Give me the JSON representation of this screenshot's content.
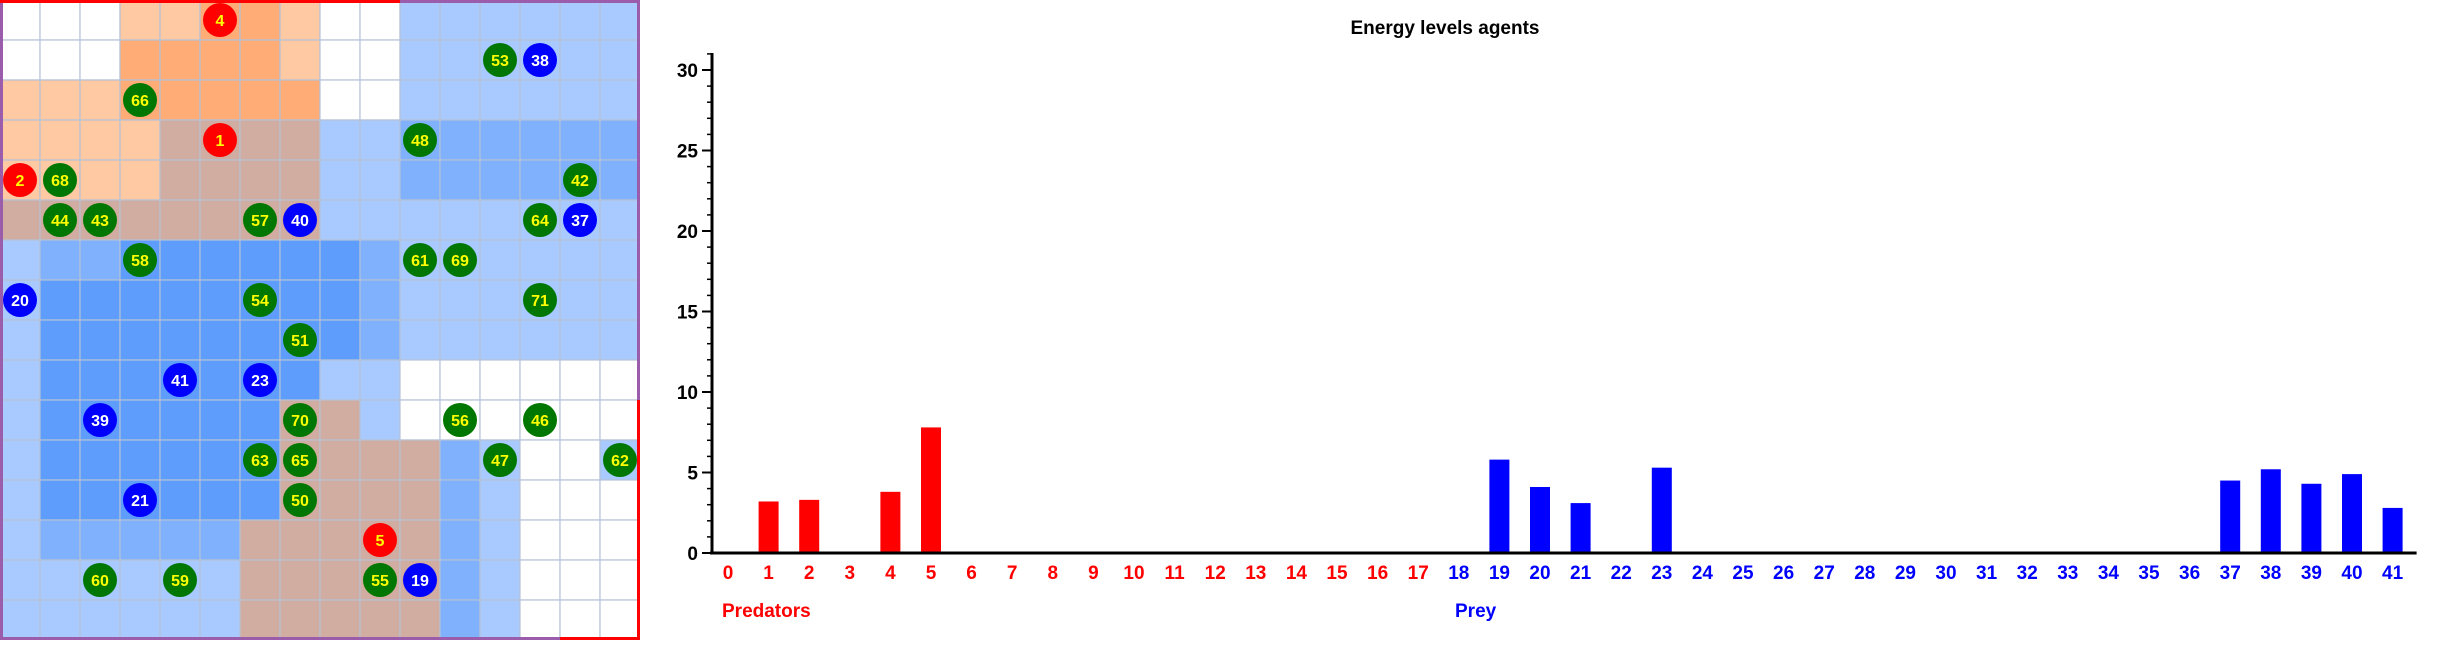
{
  "grid": {
    "rows": 16,
    "cols": 16,
    "colors": {
      "empty": "#ffffff",
      "predator_light": "#ffc9a3",
      "predator_mid": "#ffac76",
      "mixed": "#d1aca0",
      "prey_light": "#a9caff",
      "prey_mid": "#7fb1fc",
      "prey_dark": "#5e9dfb",
      "grid_line": "#b5c2d6",
      "predator_agent": "#ff0000",
      "prey_agent": "#0000ff",
      "food_agent": "#007700",
      "label_yellow": "#ffff00",
      "label_white": "#ffffff",
      "border_red": "#ff0000",
      "border_purple": "#9b5cab"
    },
    "cells": [
      "EEELLMMLEEBBBBBB",
      "EEEMMMMLEEBBBBBB",
      "LLLMMMMMEEBBBBBB",
      "LLLLXXXXBBNNNNNN",
      "LLLLXXXXBBNNNNNN",
      "XXXXXXXXBBBBBBBB",
      "BNNDDDDDDNBBBBBB",
      "BDDDDDDDDNBBBBBB",
      "BDDDDDDDDNBBBBBB",
      "BDDDDDDDBBEEEEEE",
      "BDDDDDDXXBEEEEEE",
      "BDDDDDDXXXXNBEEB",
      "BDDDDDDXXXXNBEEE",
      "BNNNNNXXXXXNBEEE",
      "BBBBBBXXXXXNBEEE",
      "BBBBBBXXXXXNBEEE"
    ],
    "agents": [
      {
        "id": "4",
        "kind": "predator",
        "row": 0,
        "col": 5
      },
      {
        "id": "53",
        "kind": "food",
        "row": 1,
        "col": 12
      },
      {
        "id": "38",
        "kind": "prey",
        "row": 1,
        "col": 13
      },
      {
        "id": "66",
        "kind": "food",
        "row": 2,
        "col": 3
      },
      {
        "id": "1",
        "kind": "predator",
        "row": 3,
        "col": 5
      },
      {
        "id": "48",
        "kind": "food",
        "row": 3,
        "col": 10
      },
      {
        "id": "2",
        "kind": "predator",
        "row": 4,
        "col": 0
      },
      {
        "id": "68",
        "kind": "food",
        "row": 4,
        "col": 1
      },
      {
        "id": "42",
        "kind": "food",
        "row": 4,
        "col": 14
      },
      {
        "id": "44",
        "kind": "food",
        "row": 5,
        "col": 1
      },
      {
        "id": "43",
        "kind": "food",
        "row": 5,
        "col": 2
      },
      {
        "id": "57",
        "kind": "food",
        "row": 5,
        "col": 6
      },
      {
        "id": "40",
        "kind": "prey",
        "row": 5,
        "col": 7
      },
      {
        "id": "64",
        "kind": "food",
        "row": 5,
        "col": 13
      },
      {
        "id": "37",
        "kind": "prey",
        "row": 5,
        "col": 14
      },
      {
        "id": "58",
        "kind": "food",
        "row": 6,
        "col": 3
      },
      {
        "id": "61",
        "kind": "food",
        "row": 6,
        "col": 10
      },
      {
        "id": "69",
        "kind": "food",
        "row": 6,
        "col": 11
      },
      {
        "id": "20",
        "kind": "prey",
        "row": 7,
        "col": 0
      },
      {
        "id": "54",
        "kind": "food",
        "row": 7,
        "col": 6
      },
      {
        "id": "71",
        "kind": "food",
        "row": 7,
        "col": 13
      },
      {
        "id": "51",
        "kind": "food",
        "row": 8,
        "col": 7
      },
      {
        "id": "41",
        "kind": "prey",
        "row": 9,
        "col": 4
      },
      {
        "id": "23",
        "kind": "prey",
        "row": 9,
        "col": 6
      },
      {
        "id": "39",
        "kind": "prey",
        "row": 10,
        "col": 2
      },
      {
        "id": "70",
        "kind": "food",
        "row": 10,
        "col": 7
      },
      {
        "id": "56",
        "kind": "food",
        "row": 10,
        "col": 11
      },
      {
        "id": "46",
        "kind": "food",
        "row": 10,
        "col": 13
      },
      {
        "id": "63",
        "kind": "food",
        "row": 11,
        "col": 6
      },
      {
        "id": "65",
        "kind": "food",
        "row": 11,
        "col": 7
      },
      {
        "id": "47",
        "kind": "food",
        "row": 11,
        "col": 12
      },
      {
        "id": "62",
        "kind": "food",
        "row": 11,
        "col": 15
      },
      {
        "id": "21",
        "kind": "prey",
        "row": 12,
        "col": 3
      },
      {
        "id": "50",
        "kind": "food",
        "row": 12,
        "col": 7
      },
      {
        "id": "5",
        "kind": "predator",
        "row": 13,
        "col": 9
      },
      {
        "id": "60",
        "kind": "food",
        "row": 14,
        "col": 2
      },
      {
        "id": "59",
        "kind": "food",
        "row": 14,
        "col": 4
      },
      {
        "id": "55",
        "kind": "food",
        "row": 14,
        "col": 9
      },
      {
        "id": "19",
        "kind": "prey",
        "row": 14,
        "col": 10
      }
    ]
  },
  "chart_data": {
    "type": "bar",
    "title": "Energy levels agents",
    "categories": [
      "0",
      "1",
      "2",
      "3",
      "4",
      "5",
      "6",
      "7",
      "8",
      "9",
      "10",
      "11",
      "12",
      "13",
      "14",
      "15",
      "16",
      "17",
      "18",
      "19",
      "20",
      "21",
      "22",
      "23",
      "24",
      "25",
      "26",
      "27",
      "28",
      "29",
      "30",
      "31",
      "32",
      "33",
      "34",
      "35",
      "36",
      "37",
      "38",
      "39",
      "40",
      "41"
    ],
    "predator_count": 18,
    "series": [
      {
        "name": "Predators",
        "color": "#ff0000",
        "values": [
          0,
          3.2,
          3.3,
          0,
          3.8,
          7.8,
          0,
          0,
          0,
          0,
          0,
          0,
          0,
          0,
          0,
          0,
          0,
          0,
          null,
          null,
          null,
          null,
          null,
          null,
          null,
          null,
          null,
          null,
          null,
          null,
          null,
          null,
          null,
          null,
          null,
          null,
          null,
          null,
          null,
          null,
          null,
          null
        ]
      },
      {
        "name": "Prey",
        "color": "#0000ff",
        "values": [
          null,
          null,
          null,
          null,
          null,
          null,
          null,
          null,
          null,
          null,
          null,
          null,
          null,
          null,
          null,
          null,
          null,
          null,
          0,
          5.8,
          4.1,
          3.1,
          0,
          5.3,
          0,
          0,
          0,
          0,
          0,
          0,
          0,
          0,
          0,
          0,
          0,
          0,
          0,
          4.5,
          5.2,
          4.3,
          4.9,
          2.8
        ]
      }
    ],
    "ylim": [
      0,
      31
    ],
    "yticks": [
      "0",
      "5",
      "10",
      "15",
      "20",
      "25",
      "30"
    ],
    "group_labels": {
      "predators": "Predators",
      "prey": "Prey"
    },
    "axis_color": "#000000",
    "minor_tick_step": 1
  }
}
